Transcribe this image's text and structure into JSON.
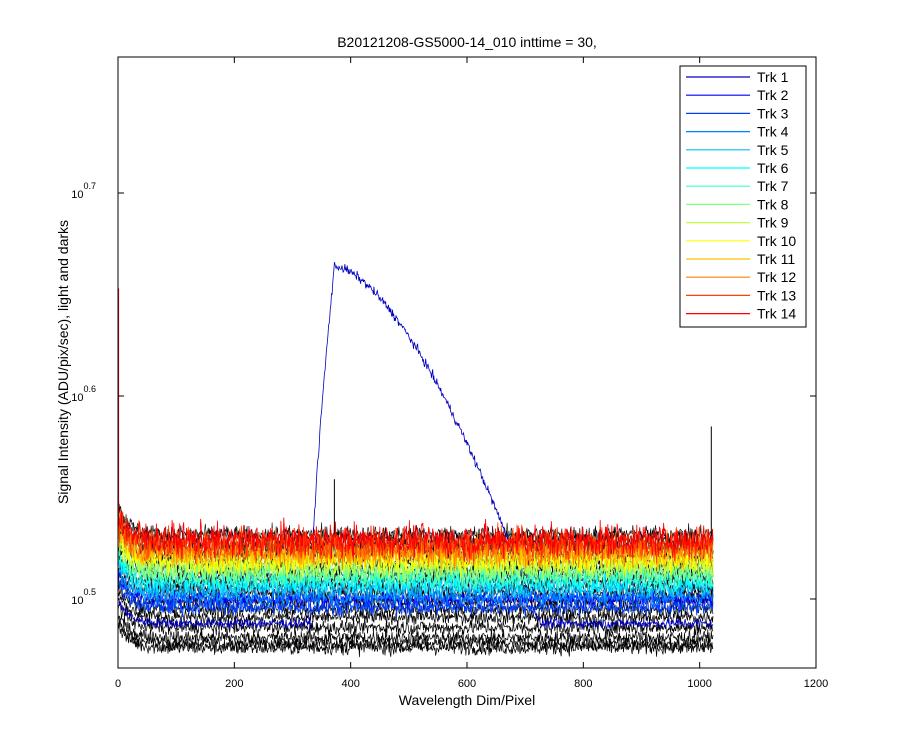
{
  "chart_data": {
    "type": "line",
    "title": "B20121208-GS5000-14_010 inttime = 30,",
    "xlabel": "Wavelength Dim/Pixel",
    "ylabel": "Signal Intensity (ADU/pix/sec), light and darks",
    "xlim": [
      0,
      1200
    ],
    "ylog": true,
    "ylim_log10": [
      0.466,
      0.767
    ],
    "x_ticks": [
      "0",
      "200",
      "400",
      "600",
      "800",
      "1000",
      "1200"
    ],
    "y_ticks": [
      {
        "base": "10",
        "exp": "0.5",
        "log10": 0.5
      },
      {
        "base": "10",
        "exp": "0.6",
        "log10": 0.6
      },
      {
        "base": "10",
        "exp": "0.7",
        "log10": 0.7
      }
    ],
    "grid": false,
    "legend_position": "top-right",
    "pixels_per_track": 1024,
    "series": [
      {
        "name": "Trk 1",
        "color": "#0000bf",
        "light_log10": 0.488,
        "dark_log10": 0.478,
        "peak": {
          "start": 330,
          "max_at": 372,
          "max_log10": 0.664,
          "end": 725
        }
      },
      {
        "name": "Trk 2",
        "color": "#0000ff",
        "light_log10": 0.5,
        "dark_log10": 0.476
      },
      {
        "name": "Trk 3",
        "color": "#0040ff",
        "light_log10": 0.496,
        "dark_log10": 0.481
      },
      {
        "name": "Trk 4",
        "color": "#0080ff",
        "light_log10": 0.501,
        "dark_log10": 0.486
      },
      {
        "name": "Trk 5",
        "color": "#00bfff",
        "light_log10": 0.505,
        "dark_log10": 0.491
      },
      {
        "name": "Trk 6",
        "color": "#00ffff",
        "light_log10": 0.508,
        "dark_log10": 0.495
      },
      {
        "name": "Trk 7",
        "color": "#40ffbf",
        "light_log10": 0.511,
        "dark_log10": 0.499
      },
      {
        "name": "Trk 8",
        "color": "#80ff80",
        "light_log10": 0.514,
        "dark_log10": 0.503
      },
      {
        "name": "Trk 9",
        "color": "#bfff40",
        "light_log10": 0.517,
        "dark_log10": 0.506
      },
      {
        "name": "Trk 10",
        "color": "#ffff00",
        "light_log10": 0.519,
        "dark_log10": 0.509
      },
      {
        "name": "Trk 11",
        "color": "#ffbf00",
        "light_log10": 0.522,
        "dark_log10": 0.512
      },
      {
        "name": "Trk 12",
        "color": "#ff8000",
        "light_log10": 0.524,
        "dark_log10": 0.515
      },
      {
        "name": "Trk 13",
        "color": "#ff4000",
        "light_log10": 0.527,
        "dark_log10": 0.518
      },
      {
        "name": "Trk 14",
        "color": "#ff0000",
        "light_log10": 0.529,
        "dark_log10": 0.522
      }
    ]
  }
}
